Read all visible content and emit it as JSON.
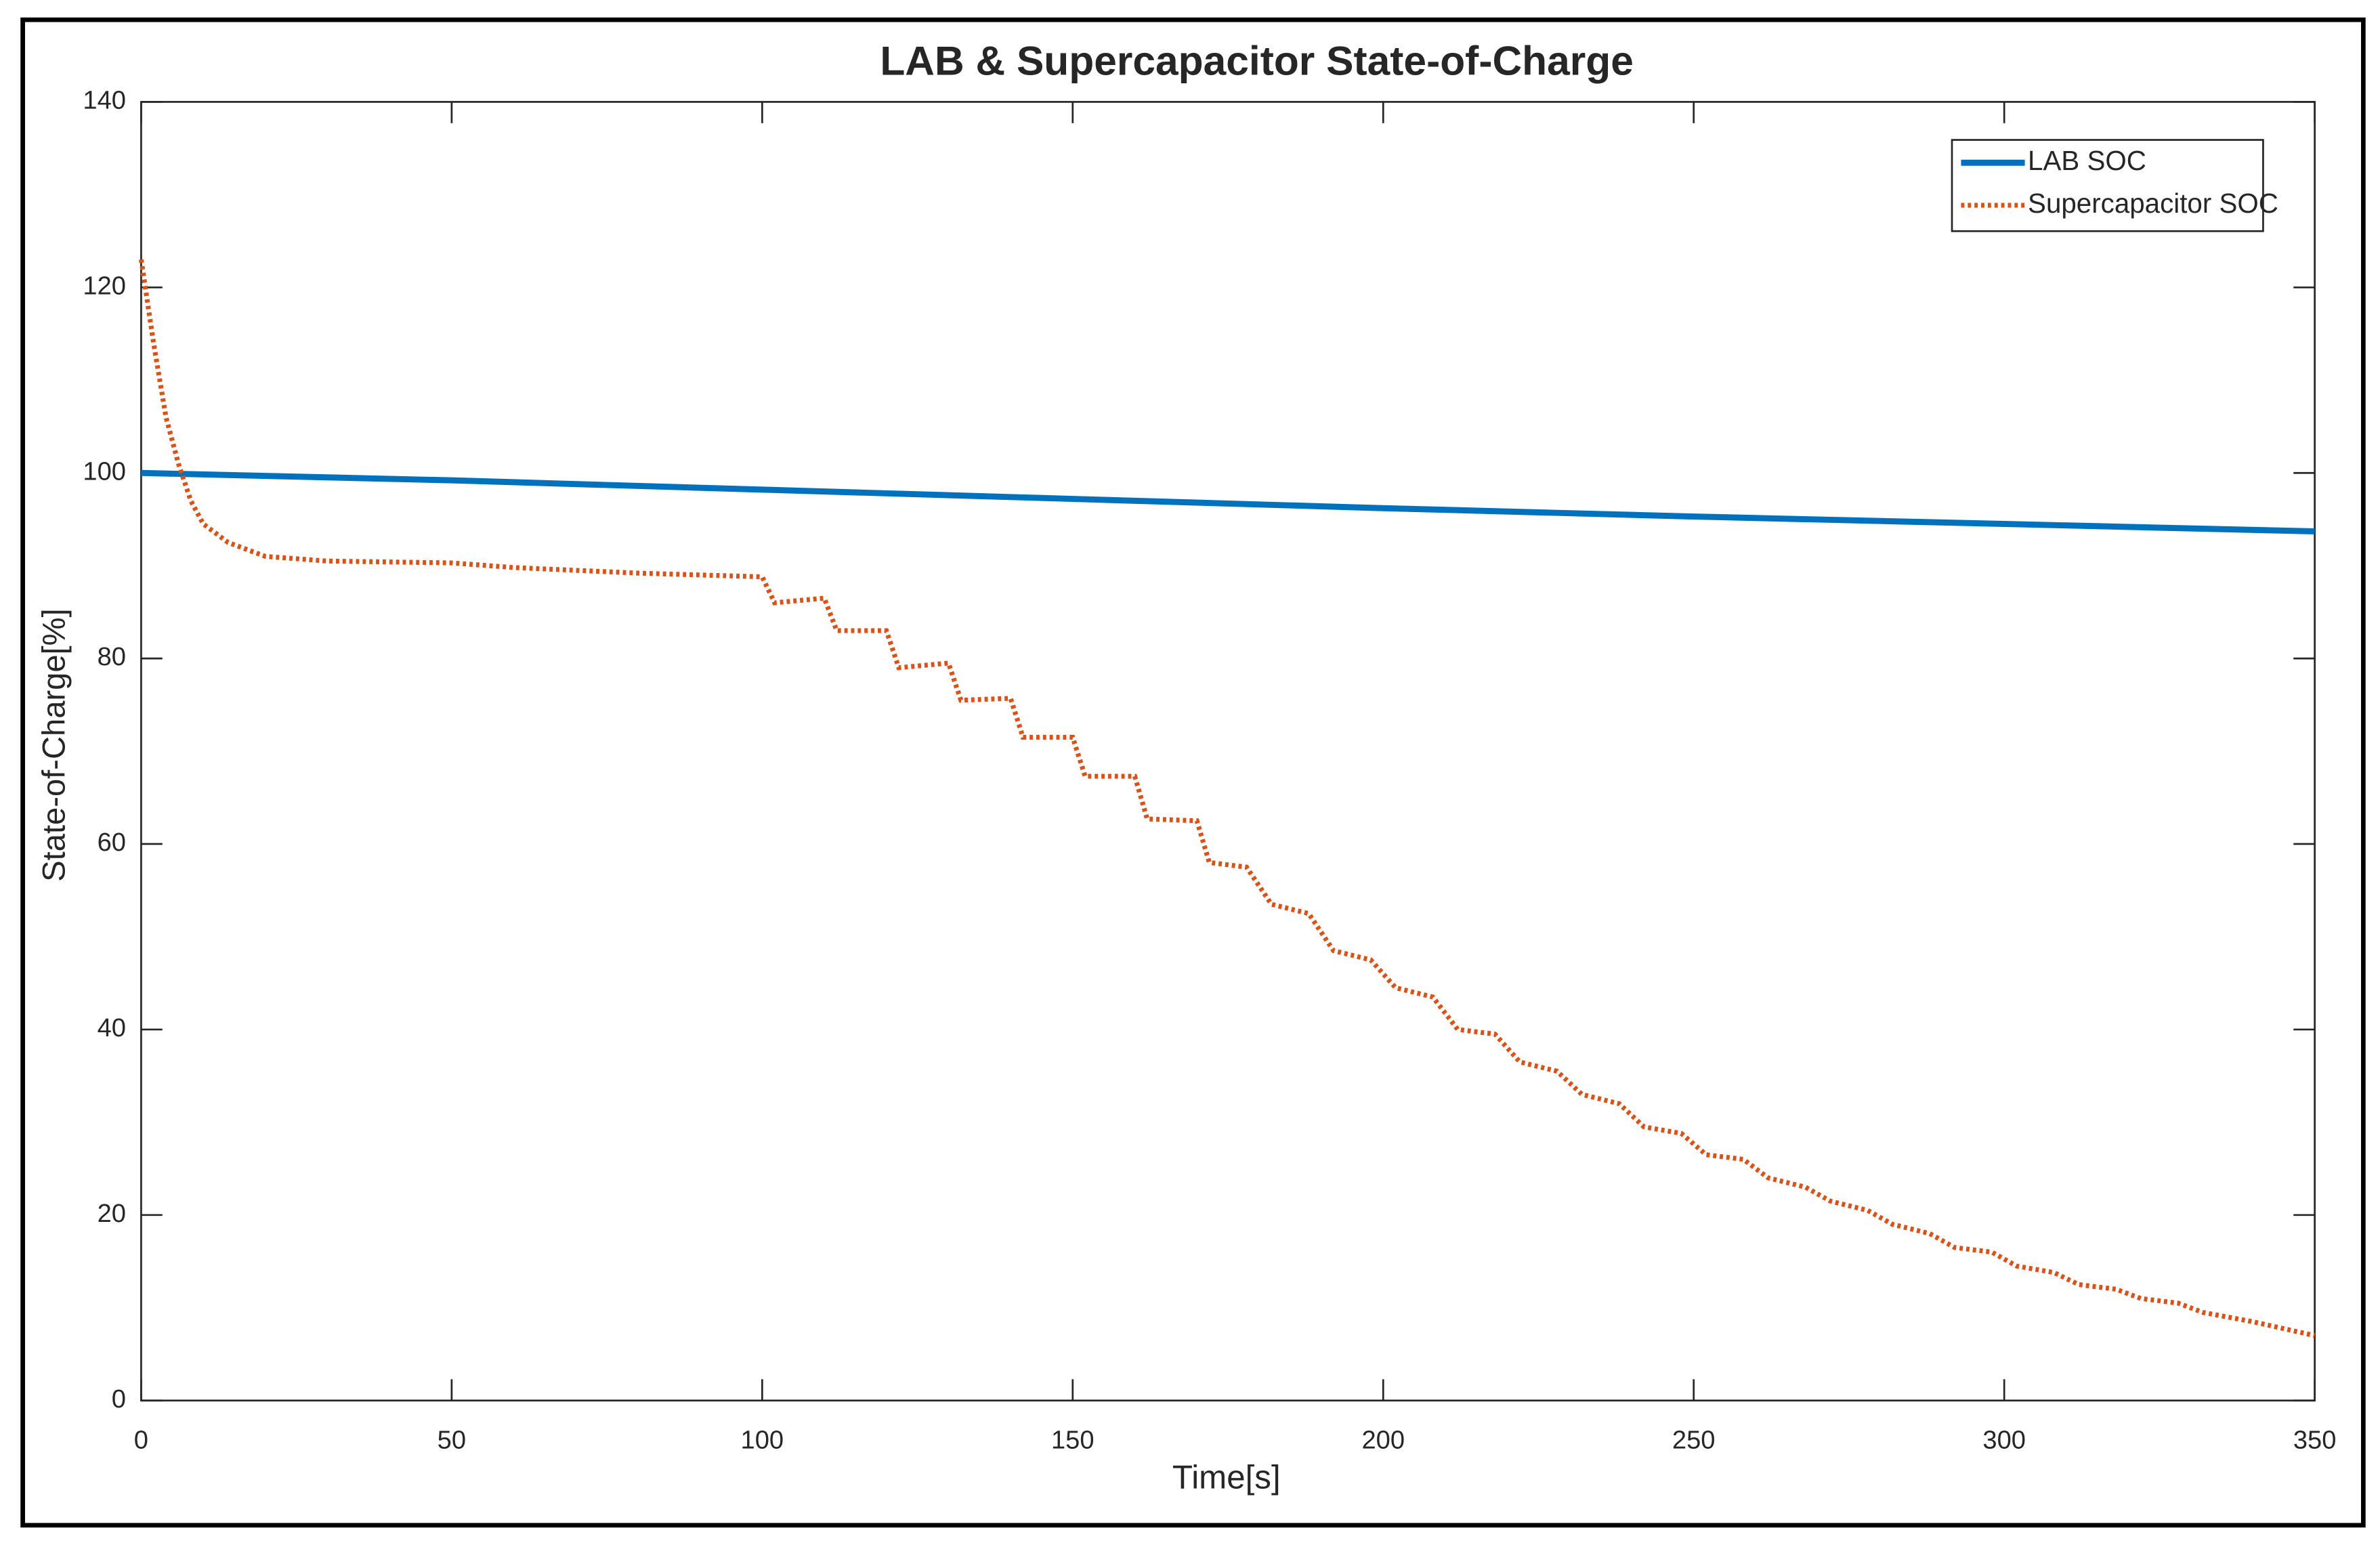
{
  "chart_data": {
    "type": "line",
    "title": "LAB & Supercapacitor State-of-Charge",
    "x_label": "Time[s]",
    "y_label": "State-of-Charge[%]",
    "xlim": [
      0,
      350
    ],
    "ylim": [
      0,
      140
    ],
    "xticks": [
      0,
      50,
      100,
      150,
      200,
      250,
      300,
      350
    ],
    "yticks": [
      0,
      20,
      40,
      60,
      80,
      100,
      120,
      140
    ],
    "legend": "upper right",
    "grid": false,
    "series": [
      {
        "name": "LAB SOC",
        "color": "#0072bd",
        "style": "solid",
        "x": [
          0,
          50,
          100,
          150,
          200,
          250,
          300,
          350
        ],
        "values": [
          100,
          99.2,
          98.2,
          97.2,
          96.2,
          95.3,
          94.5,
          93.7
        ]
      },
      {
        "name": "Supercapacitor SOC",
        "color": "#d95319",
        "style": "dotted",
        "x": [
          0,
          2,
          4,
          6,
          8,
          10,
          14,
          20,
          30,
          50,
          60,
          80,
          100,
          102,
          110,
          112,
          120,
          122,
          130,
          132,
          140,
          142,
          150,
          152,
          160,
          162,
          170,
          172,
          178,
          182,
          188,
          192,
          198,
          202,
          208,
          212,
          218,
          222,
          228,
          232,
          238,
          242,
          248,
          252,
          258,
          262,
          268,
          272,
          278,
          282,
          288,
          292,
          298,
          302,
          308,
          312,
          318,
          322,
          328,
          332,
          340,
          350
        ],
        "values": [
          123,
          114,
          106,
          101,
          97,
          94.5,
          92.5,
          91,
          90.5,
          90.3,
          89.8,
          89.2,
          88.8,
          86,
          86.5,
          83,
          83,
          79,
          79.5,
          75.5,
          75.7,
          71.5,
          71.5,
          67.3,
          67.3,
          62.7,
          62.5,
          58,
          57.5,
          53.5,
          52.5,
          48.5,
          47.5,
          44.5,
          43.5,
          40,
          39.5,
          36.5,
          35.5,
          33,
          32,
          29.5,
          28.8,
          26.5,
          26,
          24,
          23,
          21.5,
          20.5,
          19,
          18,
          16.5,
          16,
          14.5,
          13.8,
          12.5,
          12,
          11,
          10.5,
          9.5,
          8.5,
          7
        ]
      }
    ]
  }
}
